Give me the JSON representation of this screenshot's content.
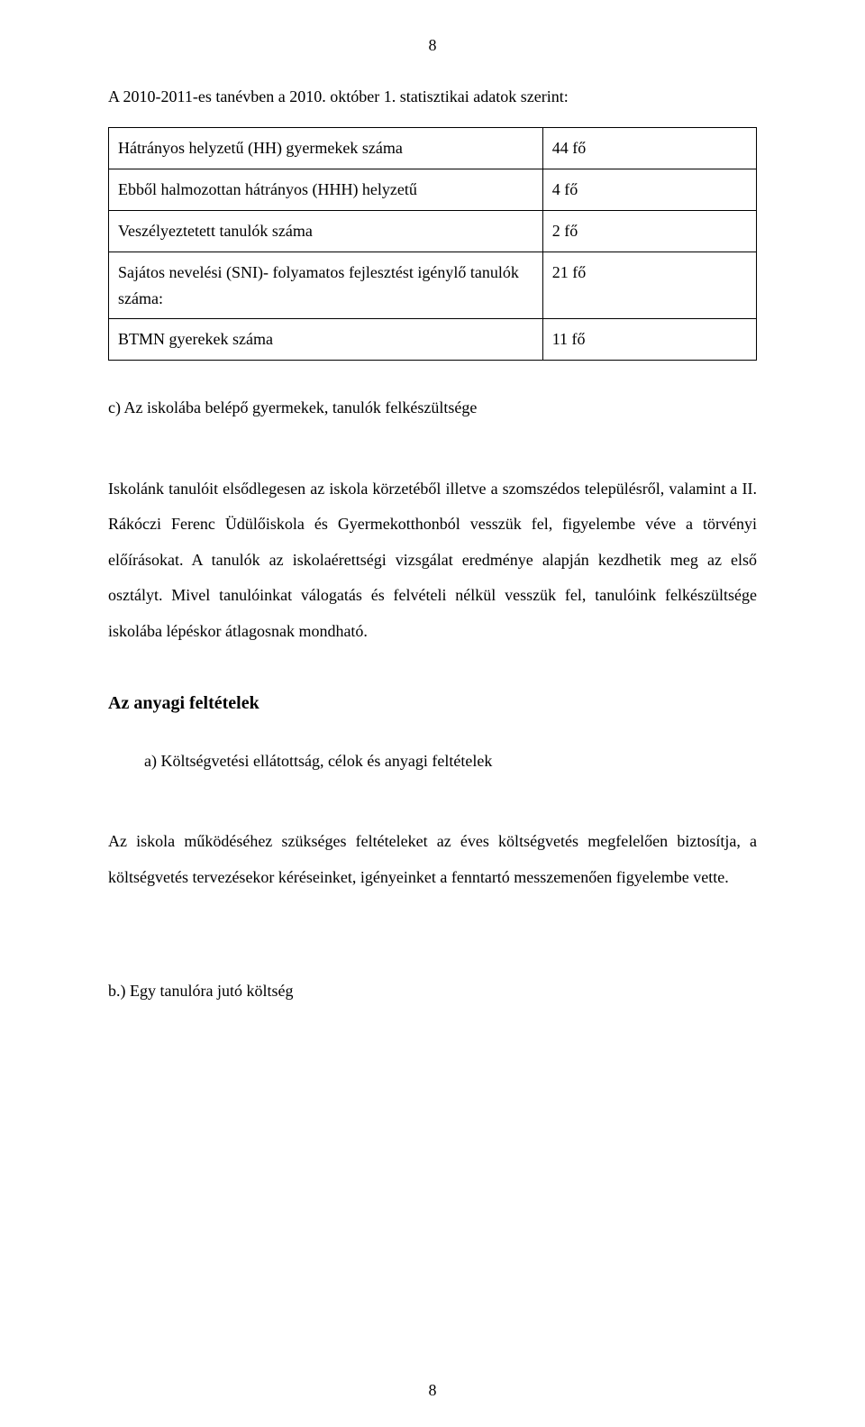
{
  "pageNumberTop": "8",
  "introLine": "A 2010-2011-es tanévben a 2010. október 1. statisztikai adatok szerint:",
  "table": {
    "rows": [
      {
        "label": "Hátrányos helyzetű (HH) gyermekek száma",
        "value": "44 fő"
      },
      {
        "label": "Ebből halmozottan hátrányos (HHH) helyzetű",
        "value": "4 fő"
      },
      {
        "label": "Veszélyeztetett tanulók száma",
        "value": "2 fő"
      },
      {
        "label": "Sajátos nevelési (SNI)- folyamatos fejlesztést igénylő tanulók száma:",
        "value": "21 fő"
      },
      {
        "label": "BTMN gyerekek száma",
        "value": "11 fő"
      }
    ]
  },
  "sectionC": "c) Az iskolába belépő gyermekek, tanulók felkészültsége",
  "paragraph1": "Iskolánk tanulóit elsődlegesen az iskola körzetéből illetve a szomszédos településről, valamint a II. Rákóczi Ferenc Üdülőiskola és Gyermekotthonból vesszük fel, figyelembe véve a törvényi előírásokat. A tanulók az iskolaérettségi vizsgálat eredménye alapján kezdhetik meg az első osztályt. Mivel tanulóinkat válogatás és felvételi nélkül vesszük fel, tanulóink felkészültsége iskolába lépéskor átlagosnak mondható.",
  "heading": "Az anyagi feltételek",
  "listItemA": "a)  Költségvetési ellátottság, célok és anyagi feltételek",
  "paragraph2": "Az iskola működéséhez szükséges feltételeket az éves költségvetés megfelelően biztosítja, a költségvetés tervezésekor kéréseinket, igényeinket a fenntartó messzemenően figyelembe vette.",
  "lastItem": "b.) Egy tanulóra jutó költség",
  "pageNumberBottom": "8",
  "colors": {
    "background": "#ffffff",
    "text": "#000000",
    "border": "#000000"
  }
}
